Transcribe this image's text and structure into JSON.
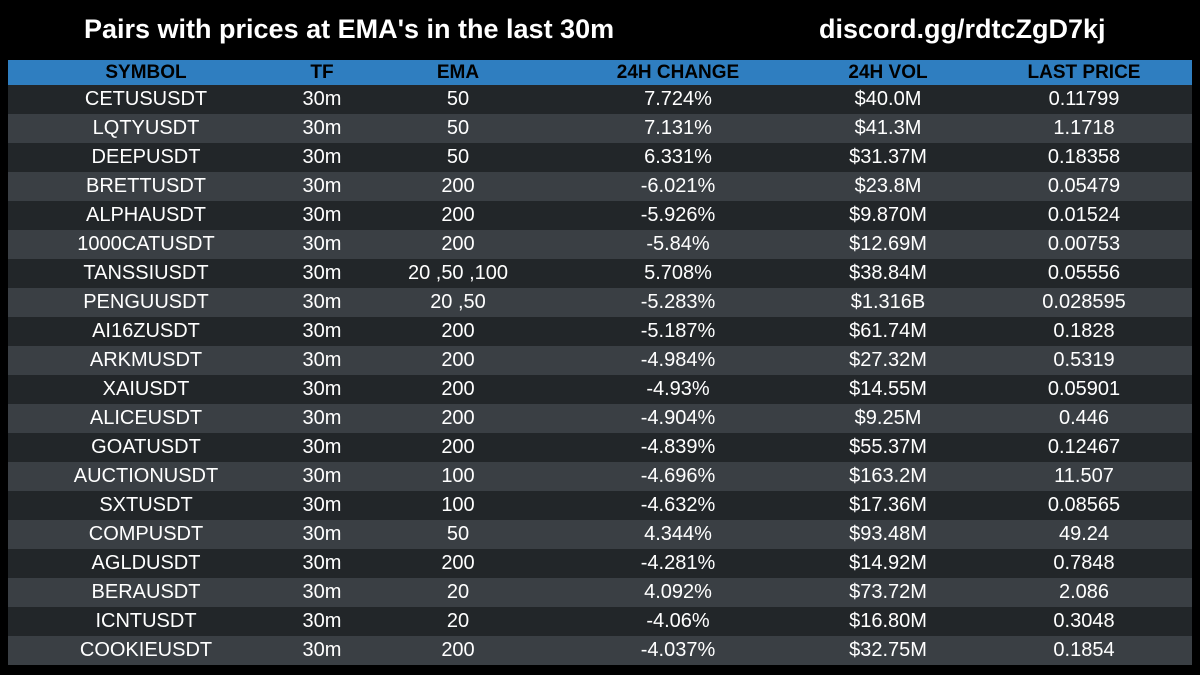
{
  "header": {
    "title": "Pairs with prices at EMA's in the last 30m",
    "link": "discord.gg/rdtcZgD7kj"
  },
  "colors": {
    "background": "#000000",
    "header_bar": "#2f7ec0",
    "row_dark": "#222629",
    "row_light": "#3a3f44",
    "text": "#ffffff"
  },
  "table": {
    "columns": [
      "SYMBOL",
      "TF",
      "EMA",
      "24H CHANGE",
      "24H VOL",
      "LAST PRICE"
    ],
    "rows": [
      [
        "CETUSUSDT",
        "30m",
        "50",
        "7.724%",
        "$40.0M",
        "0.11799"
      ],
      [
        "LQTYUSDT",
        "30m",
        "50",
        "7.131%",
        "$41.3M",
        "1.1718"
      ],
      [
        "DEEPUSDT",
        "30m",
        "50",
        "6.331%",
        "$31.37M",
        "0.18358"
      ],
      [
        "BRETTUSDT",
        "30m",
        "200",
        "-6.021%",
        "$23.8M",
        "0.05479"
      ],
      [
        "ALPHAUSDT",
        "30m",
        "200",
        "-5.926%",
        "$9.870M",
        "0.01524"
      ],
      [
        "1000CATUSDT",
        "30m",
        "200",
        "-5.84%",
        "$12.69M",
        "0.00753"
      ],
      [
        "TANSSIUSDT",
        "30m",
        "20 ,50 ,100",
        "5.708%",
        "$38.84M",
        "0.05556"
      ],
      [
        "PENGUUSDT",
        "30m",
        "20 ,50",
        "-5.283%",
        "$1.316B",
        "0.028595"
      ],
      [
        "AI16ZUSDT",
        "30m",
        "200",
        "-5.187%",
        "$61.74M",
        "0.1828"
      ],
      [
        "ARKMUSDT",
        "30m",
        "200",
        "-4.984%",
        "$27.32M",
        "0.5319"
      ],
      [
        "XAIUSDT",
        "30m",
        "200",
        "-4.93%",
        "$14.55M",
        "0.05901"
      ],
      [
        "ALICEUSDT",
        "30m",
        "200",
        "-4.904%",
        "$9.25M",
        "0.446"
      ],
      [
        "GOATUSDT",
        "30m",
        "200",
        "-4.839%",
        "$55.37M",
        "0.12467"
      ],
      [
        "AUCTIONUSDT",
        "30m",
        "100",
        "-4.696%",
        "$163.2M",
        "11.507"
      ],
      [
        "SXTUSDT",
        "30m",
        "100",
        "-4.632%",
        "$17.36M",
        "0.08565"
      ],
      [
        "COMPUSDT",
        "30m",
        "50",
        "4.344%",
        "$93.48M",
        "49.24"
      ],
      [
        "AGLDUSDT",
        "30m",
        "200",
        "-4.281%",
        "$14.92M",
        "0.7848"
      ],
      [
        "BERAUSDT",
        "30m",
        "20",
        "4.092%",
        "$73.72M",
        "2.086"
      ],
      [
        "ICNTUSDT",
        "30m",
        "20",
        "-4.06%",
        "$16.80M",
        "0.3048"
      ],
      [
        "COOKIEUSDT",
        "30m",
        "200",
        "-4.037%",
        "$32.75M",
        "0.1854"
      ]
    ]
  }
}
